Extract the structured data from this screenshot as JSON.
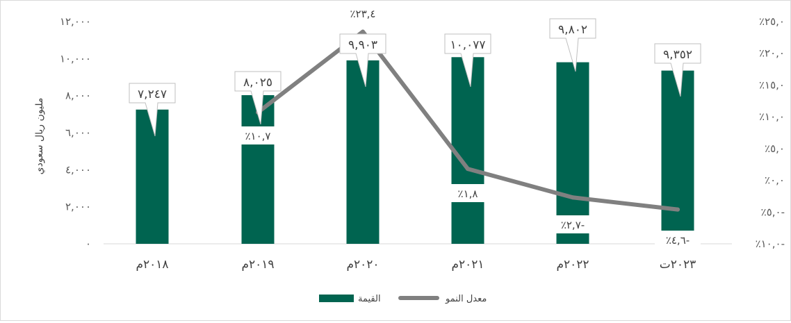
{
  "chart_data": {
    "type": "bar",
    "categories": [
      "٢٠١٨م",
      "٢٠١٩م",
      "٢٠٢٠م",
      "٢٠٢١م",
      "٢٠٢٢م",
      "٢٠٢٣ت"
    ],
    "series": [
      {
        "name": "القيمة",
        "type": "bar",
        "axis": "left",
        "color": "#006450",
        "values": [
          7247,
          8025,
          9903,
          10077,
          9802,
          9352
        ],
        "labels": [
          "٧,٢٤٧",
          "٨,٠٢٥",
          "٩,٩٠٣",
          "١٠,٠٧٧",
          "٩,٨٠٢",
          "٩,٣٥٢"
        ]
      },
      {
        "name": "معدل النمو",
        "type": "line",
        "axis": "right",
        "color": "#808080",
        "values": [
          null,
          10.7,
          23.4,
          1.8,
          -2.7,
          -4.6
        ],
        "labels": [
          "",
          "٪١٠,٧",
          "٪٢٣,٤",
          "٪١,٨",
          "٪٢,٧-",
          "٪٤,٦-"
        ]
      }
    ],
    "ylabel": "مليون ريال سعودي",
    "ylim": [
      0,
      12000
    ],
    "yticks": [
      0,
      2000,
      4000,
      6000,
      8000,
      10000,
      12000
    ],
    "ytick_labels": [
      "٠",
      "٢,٠٠٠",
      "٤,٠٠٠",
      "٦,٠٠٠",
      "٨,٠٠٠",
      "١٠,٠٠٠",
      "١٢,٠٠٠"
    ],
    "y2lim": [
      -10,
      25
    ],
    "y2ticks": [
      -10,
      -5,
      0,
      5,
      10,
      15,
      20,
      25
    ],
    "y2tick_labels": [
      "٪١٠,٠-",
      "٪٥,٠-",
      "٪٠,٠",
      "٪٥,٠",
      "٪١٠,٠",
      "٪١٥,٠",
      "٪٢٠,٠",
      "٪٢٥,٠"
    ],
    "grid": false,
    "legend": "bottom-center"
  }
}
